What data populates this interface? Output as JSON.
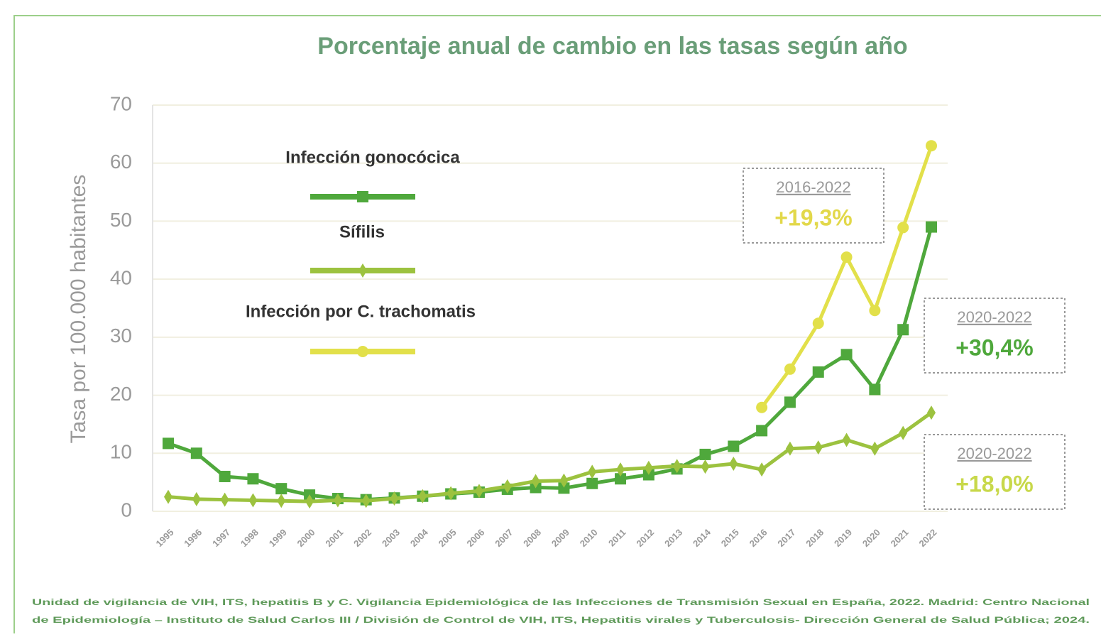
{
  "chart_data": {
    "type": "line",
    "title": "Porcentaje anual de cambio en las tasas según año",
    "y_label": "Tasa por 100.000 habitantes",
    "categories": [
      "1995",
      "1996",
      "1997",
      "1998",
      "1999",
      "2000",
      "2001",
      "2002",
      "2003",
      "2004",
      "2005",
      "2006",
      "2007",
      "2008",
      "2009",
      "2010",
      "2011",
      "2012",
      "2013",
      "2014",
      "2015",
      "2016",
      "2017",
      "2018",
      "2019",
      "2020",
      "2021",
      "2022"
    ],
    "series": [
      {
        "name": "Infección gonocócica",
        "color": "#4fa83c",
        "marker": "square",
        "values": [
          11.7,
          10,
          6,
          5.6,
          3.9,
          2.8,
          2.2,
          2,
          2.3,
          2.6,
          3,
          3.3,
          3.8,
          4.1,
          4,
          4.8,
          5.6,
          6.3,
          7.3,
          9.8,
          11.2,
          13.9,
          18.8,
          24,
          27,
          21,
          31.3,
          49
        ]
      },
      {
        "name": "Sífilis",
        "color": "#9cc23f",
        "marker": "diamond",
        "values": [
          2.5,
          2.1,
          2,
          1.9,
          1.8,
          1.7,
          1.9,
          1.8,
          2.2,
          2.6,
          3.1,
          3.5,
          4.3,
          5.2,
          5.3,
          6.8,
          7.2,
          7.5,
          7.8,
          7.7,
          8.2,
          7.2,
          10.8,
          11,
          12.3,
          10.8,
          13.5,
          17
        ]
      },
      {
        "name": "Infección por C. trachomatis",
        "color": "#e2e04a",
        "marker": "circle",
        "values": [
          null,
          null,
          null,
          null,
          null,
          null,
          null,
          null,
          null,
          null,
          null,
          null,
          null,
          null,
          null,
          null,
          null,
          null,
          null,
          null,
          null,
          17.9,
          24.5,
          32.4,
          43.8,
          34.6,
          48.9,
          63
        ]
      }
    ],
    "ylim": [
      0,
      70
    ],
    "yticks": [
      0,
      10,
      20,
      30,
      40,
      50,
      60,
      70
    ],
    "grid": true,
    "annotations": [
      {
        "range": "2016-2022",
        "text": "+19,3%",
        "color": "#e2d84a"
      },
      {
        "range": "2020-2022",
        "text": "+30,4%",
        "color": "#4fa83c"
      },
      {
        "range": "2020-2022",
        "text": "+18,0%",
        "color": "#c8d84a"
      }
    ],
    "source": [
      "Unidad de vigilancia de VIH, ITS, hepatitis B y C. Vigilancia Epidemiológica de las Infecciones de Transmisión Sexual en España, 2022. Madrid: Centro Nacional",
      "de Epidemiología – Instituto de Salud Carlos III / División de Control de VIH, ITS, Hepatitis virales y Tuberculosis- Dirección General de Salud Pública; 2024."
    ]
  }
}
